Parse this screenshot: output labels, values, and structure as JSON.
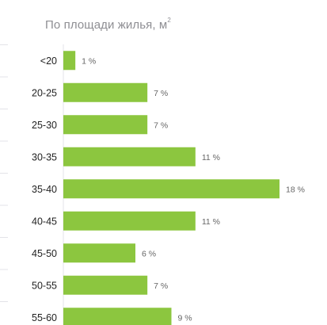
{
  "chart_data": {
    "type": "bar",
    "orientation": "horizontal",
    "title": "По площади жилья, м",
    "title_superscript": "2",
    "categories": [
      "<20",
      "20-25",
      "25-30",
      "30-35",
      "35-40",
      "40-45",
      "45-50",
      "50-55",
      "55-60"
    ],
    "values": [
      1,
      7,
      7,
      11,
      18,
      11,
      6,
      7,
      9
    ],
    "value_labels": [
      "1 %",
      "7 %",
      "7 %",
      "11 %",
      "18 %",
      "11 %",
      "6 %",
      "7 %",
      "9 %"
    ],
    "xlim": [
      0,
      18
    ],
    "grid": false,
    "legend": "none"
  },
  "colors": {
    "bar": "#8cc63f",
    "divider": "#e3e3e8",
    "title": "#8e8e93"
  }
}
